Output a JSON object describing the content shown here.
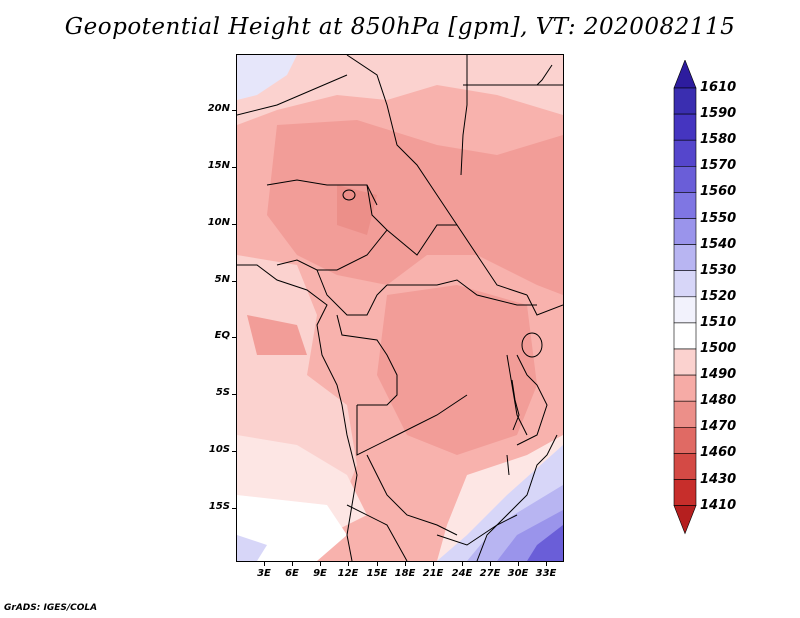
{
  "title": "Geopotential Height at 850hPa [gpm], VT: 2020082115",
  "credit": "GrADS: IGES/COLA",
  "map": {
    "lat_labels": [
      "20N",
      "15N",
      "10N",
      "5N",
      "EQ",
      "5S",
      "10S",
      "15S"
    ],
    "lon_labels": [
      "3E",
      "6E",
      "9E",
      "12E",
      "15E",
      "18E",
      "21E",
      "24E",
      "27E",
      "30E",
      "33E"
    ]
  },
  "colorbar": {
    "levels": [
      "1610",
      "1590",
      "1580",
      "1570",
      "1560",
      "1550",
      "1540",
      "1530",
      "1520",
      "1510",
      "1500",
      "1490",
      "1480",
      "1470",
      "1460",
      "1430",
      "1410"
    ],
    "colors": [
      "#2d1c9e",
      "#3a2eb0",
      "#4535c0",
      "#5546cc",
      "#6a5ed8",
      "#7f76e3",
      "#9a94eb",
      "#b8b5f2",
      "#d7d6f8",
      "#f2f2fc",
      "#ffffff",
      "#fbd2cf",
      "#f6aba6",
      "#ec8f89",
      "#e06a64",
      "#d44a45",
      "#c72e2b",
      "#b51f1f"
    ]
  }
}
